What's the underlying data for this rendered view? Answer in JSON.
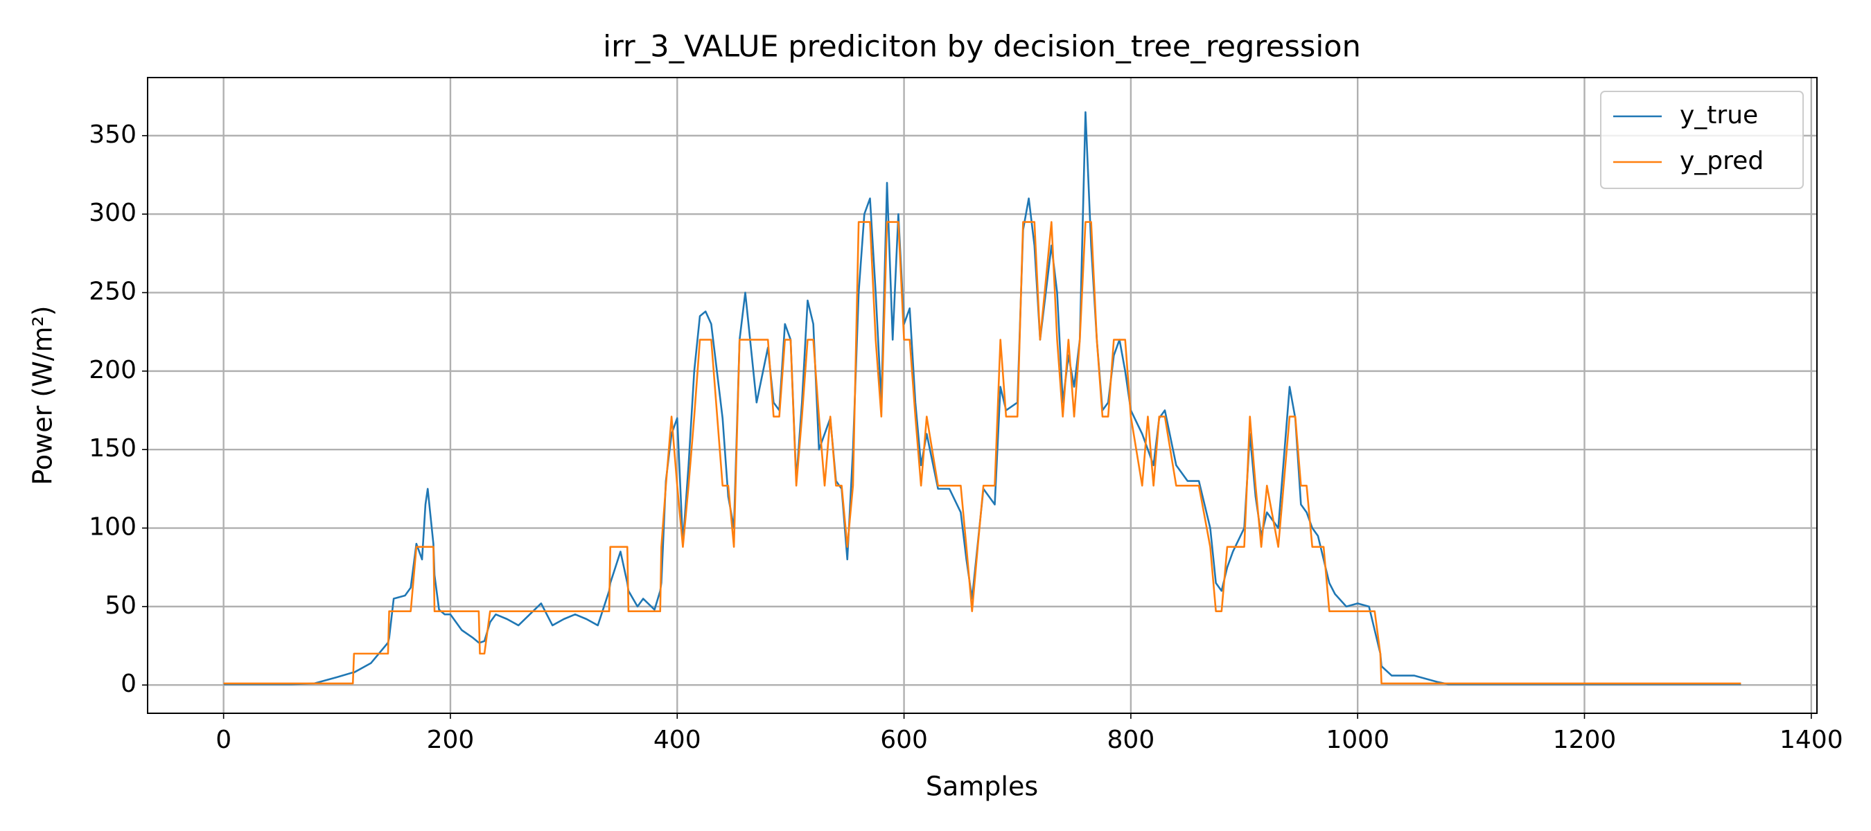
{
  "chart_data": {
    "type": "line",
    "title": "irr_3_VALUE prediciton by decision_tree_regression",
    "xlabel": "Samples",
    "ylabel": "Power (W/m²)",
    "x": [
      0,
      60,
      80,
      100,
      114,
      115,
      130,
      145,
      146,
      150,
      160,
      165,
      170,
      175,
      178,
      180,
      185,
      186,
      190,
      195,
      200,
      210,
      220,
      225,
      226,
      230,
      235,
      240,
      250,
      260,
      270,
      280,
      290,
      300,
      310,
      320,
      330,
      340,
      341,
      350,
      356,
      357,
      365,
      370,
      380,
      385,
      386,
      390,
      395,
      400,
      405,
      410,
      415,
      420,
      425,
      430,
      440,
      445,
      450,
      455,
      460,
      470,
      480,
      485,
      490,
      495,
      500,
      505,
      510,
      515,
      520,
      525,
      530,
      535,
      540,
      545,
      550,
      555,
      560,
      565,
      570,
      575,
      580,
      585,
      590,
      595,
      600,
      605,
      610,
      615,
      620,
      630,
      640,
      650,
      655,
      660,
      665,
      670,
      680,
      685,
      690,
      700,
      705,
      710,
      715,
      720,
      730,
      735,
      740,
      745,
      750,
      755,
      760,
      765,
      770,
      775,
      780,
      785,
      790,
      795,
      800,
      810,
      815,
      820,
      825,
      830,
      840,
      850,
      860,
      870,
      875,
      880,
      885,
      890,
      900,
      905,
      910,
      915,
      920,
      930,
      940,
      945,
      950,
      955,
      960,
      965,
      970,
      975,
      980,
      990,
      1000,
      1010,
      1015,
      1020,
      1021,
      1030,
      1040,
      1050,
      1060,
      1070,
      1080,
      1100,
      1200,
      1300,
      1338
    ],
    "series": [
      {
        "name": "y_true",
        "color": "#1f77b4",
        "values": [
          0.5,
          0.5,
          1,
          5,
          8,
          8,
          14,
          27,
          30,
          55,
          57,
          62,
          90,
          80,
          115,
          125,
          90,
          70,
          48,
          45,
          45,
          35,
          30,
          27,
          27,
          28,
          40,
          45,
          42,
          38,
          45,
          52,
          38,
          42,
          45,
          42,
          38,
          60,
          65,
          85,
          65,
          60,
          50,
          55,
          48,
          60,
          65,
          130,
          160,
          170,
          90,
          140,
          200,
          235,
          238,
          230,
          170,
          120,
          100,
          220,
          250,
          180,
          215,
          180,
          175,
          230,
          220,
          130,
          180,
          245,
          230,
          150,
          160,
          170,
          130,
          125,
          80,
          150,
          250,
          300,
          310,
          250,
          180,
          320,
          220,
          300,
          230,
          240,
          180,
          140,
          160,
          125,
          125,
          110,
          80,
          55,
          90,
          125,
          115,
          190,
          175,
          180,
          290,
          310,
          280,
          220,
          280,
          250,
          180,
          210,
          190,
          220,
          365,
          280,
          220,
          175,
          180,
          210,
          220,
          200,
          175,
          160,
          150,
          140,
          170,
          175,
          140,
          130,
          130,
          100,
          65,
          60,
          75,
          85,
          100,
          160,
          120,
          95,
          110,
          100,
          190,
          170,
          115,
          110,
          100,
          95,
          80,
          65,
          58,
          50,
          52,
          50,
          35,
          20,
          12,
          6,
          6,
          6,
          4,
          2,
          0.5,
          0.5,
          0.5,
          0.5,
          0.5
        ]
      },
      {
        "name": "y_pred",
        "color": "#ff7f0e",
        "values": [
          1,
          1,
          1,
          1,
          1,
          20,
          20,
          20,
          47,
          47,
          47,
          47,
          88,
          88,
          88,
          88,
          88,
          47,
          47,
          47,
          47,
          47,
          47,
          47,
          20,
          20,
          47,
          47,
          47,
          47,
          47,
          47,
          47,
          47,
          47,
          47,
          47,
          47,
          88,
          88,
          88,
          47,
          47,
          47,
          47,
          47,
          88,
          127,
          171,
          127,
          88,
          127,
          171,
          220,
          220,
          220,
          127,
          127,
          88,
          220,
          220,
          220,
          220,
          171,
          171,
          220,
          220,
          127,
          171,
          220,
          220,
          171,
          127,
          171,
          127,
          127,
          88,
          127,
          295,
          295,
          295,
          220,
          171,
          295,
          295,
          295,
          220,
          220,
          171,
          127,
          171,
          127,
          127,
          127,
          88,
          47,
          88,
          127,
          127,
          220,
          171,
          171,
          295,
          295,
          295,
          220,
          295,
          220,
          171,
          220,
          171,
          220,
          295,
          295,
          220,
          171,
          171,
          220,
          220,
          220,
          171,
          127,
          171,
          127,
          171,
          171,
          127,
          127,
          127,
          88,
          47,
          47,
          88,
          88,
          88,
          171,
          127,
          88,
          127,
          88,
          171,
          171,
          127,
          127,
          88,
          88,
          88,
          47,
          47,
          47,
          47,
          47,
          47,
          20,
          1,
          1,
          1,
          1,
          1,
          1,
          1,
          1,
          1,
          1,
          1
        ]
      }
    ],
    "xlim": [
      -67,
      1405
    ],
    "ylim": [
      -18,
      387
    ],
    "xticks": [
      0,
      200,
      400,
      600,
      800,
      1000,
      1200,
      1400
    ],
    "yticks": [
      0,
      50,
      100,
      150,
      200,
      250,
      300,
      350
    ],
    "grid": true,
    "legend": "upper right"
  }
}
